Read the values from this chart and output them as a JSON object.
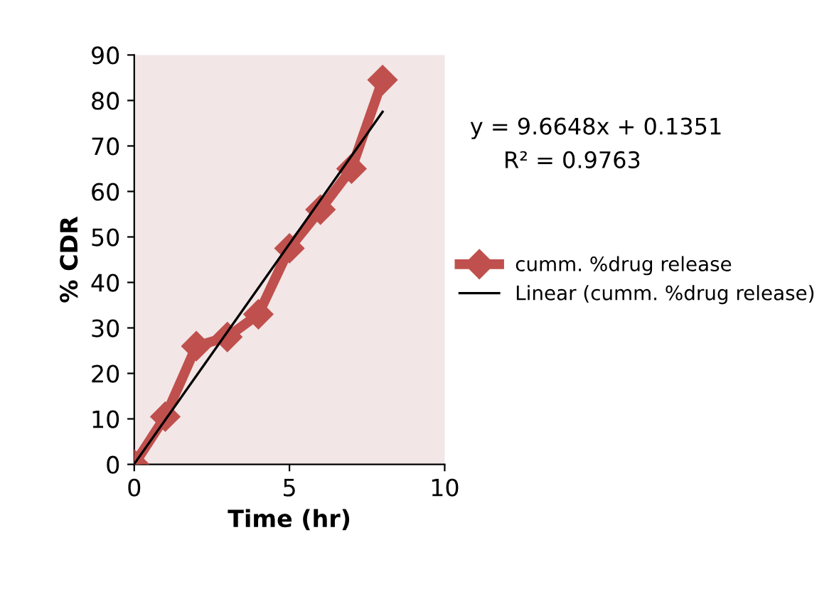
{
  "chart_data": {
    "type": "line",
    "xlabel": "Time (hr)",
    "ylabel": "% CDR",
    "x": [
      0,
      1,
      2,
      3,
      4,
      5,
      6,
      7,
      8
    ],
    "series": [
      {
        "name": "cumm. %drug release",
        "color": "#c0504d",
        "values": [
          0,
          10.5,
          26,
          28,
          33,
          47.5,
          56,
          65,
          84.5
        ],
        "marker": "diamond"
      },
      {
        "name": "Linear (cumm. %drug release)",
        "color": "#000000",
        "x": [
          0,
          8
        ],
        "values": [
          0.1,
          77.5
        ],
        "marker": "none"
      }
    ],
    "xlim": [
      0,
      10
    ],
    "xticks": [
      0,
      5,
      10
    ],
    "ylim": [
      0,
      90
    ],
    "yticks": [
      0,
      10,
      20,
      30,
      40,
      50,
      60,
      70,
      80,
      90
    ],
    "annotations": [
      "y = 9.6648x + 0.1351",
      "R² = 0.9763"
    ],
    "legend": "right",
    "grid": false
  }
}
